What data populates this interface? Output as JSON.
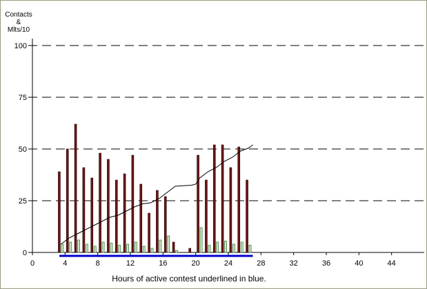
{
  "chart_data": {
    "type": "bar",
    "ylabel_lines": [
      "Contacts",
      "&",
      "Mlts/10"
    ],
    "xlabel": "Hours of active contest underlined in blue.",
    "xlim": [
      0,
      48
    ],
    "ylim": [
      0,
      100
    ],
    "x_ticks": [
      0,
      4,
      8,
      12,
      16,
      20,
      24,
      28,
      32,
      36,
      40,
      44
    ],
    "y_ticks": [
      0,
      25,
      50,
      75,
      100
    ],
    "grid": "horizontal dashed",
    "series": [
      {
        "kind": "bar",
        "color": "#6b1616",
        "points": [
          {
            "x": 3.5,
            "y": 39
          },
          {
            "x": 4.5,
            "y": 50
          },
          {
            "x": 5.5,
            "y": 62
          },
          {
            "x": 6.5,
            "y": 41
          },
          {
            "x": 7.5,
            "y": 36
          },
          {
            "x": 8.5,
            "y": 48
          },
          {
            "x": 9.5,
            "y": 45
          },
          {
            "x": 10.5,
            "y": 35
          },
          {
            "x": 11.5,
            "y": 38
          },
          {
            "x": 12.5,
            "y": 47
          },
          {
            "x": 13.5,
            "y": 33
          },
          {
            "x": 14.5,
            "y": 19
          },
          {
            "x": 15.5,
            "y": 30
          },
          {
            "x": 16.5,
            "y": 27
          },
          {
            "x": 17.5,
            "y": 5
          },
          {
            "x": 19.5,
            "y": 2
          },
          {
            "x": 20.5,
            "y": 47
          },
          {
            "x": 21.5,
            "y": 35
          },
          {
            "x": 22.5,
            "y": 52
          },
          {
            "x": 23.5,
            "y": 52
          },
          {
            "x": 24.5,
            "y": 41
          },
          {
            "x": 25.5,
            "y": 51
          },
          {
            "x": 26.5,
            "y": 35
          }
        ]
      },
      {
        "kind": "bar",
        "color": "#3f7a3f",
        "fill": "#cfe8c4",
        "points": [
          {
            "x": 3.5,
            "y": 4
          },
          {
            "x": 4.5,
            "y": 5
          },
          {
            "x": 5.5,
            "y": 6
          },
          {
            "x": 6.5,
            "y": 4
          },
          {
            "x": 7.5,
            "y": 3
          },
          {
            "x": 8.5,
            "y": 5
          },
          {
            "x": 9.5,
            "y": 4.5
          },
          {
            "x": 10.5,
            "y": 3.5
          },
          {
            "x": 11.5,
            "y": 4
          },
          {
            "x": 12.5,
            "y": 5
          },
          {
            "x": 13.5,
            "y": 3
          },
          {
            "x": 14.5,
            "y": 2
          },
          {
            "x": 15.5,
            "y": 6
          },
          {
            "x": 16.5,
            "y": 8
          },
          {
            "x": 17.5,
            "y": 1
          },
          {
            "x": 20.5,
            "y": 12
          },
          {
            "x": 21.5,
            "y": 3.5
          },
          {
            "x": 22.5,
            "y": 5
          },
          {
            "x": 23.5,
            "y": 5.5
          },
          {
            "x": 24.5,
            "y": 4
          },
          {
            "x": 25.5,
            "y": 5
          },
          {
            "x": 26.5,
            "y": 3.5
          }
        ]
      },
      {
        "kind": "line",
        "color": "#000000",
        "points": [
          {
            "x": 3.5,
            "y": 4
          },
          {
            "x": 4.5,
            "y": 7
          },
          {
            "x": 5.5,
            "y": 9
          },
          {
            "x": 6.5,
            "y": 11
          },
          {
            "x": 7.5,
            "y": 13
          },
          {
            "x": 8.5,
            "y": 15
          },
          {
            "x": 9.5,
            "y": 17
          },
          {
            "x": 10.5,
            "y": 18
          },
          {
            "x": 11.5,
            "y": 20
          },
          {
            "x": 12.5,
            "y": 22
          },
          {
            "x": 13.5,
            "y": 23.5
          },
          {
            "x": 14.5,
            "y": 24
          },
          {
            "x": 15.5,
            "y": 26
          },
          {
            "x": 16.5,
            "y": 29
          },
          {
            "x": 17.5,
            "y": 32
          },
          {
            "x": 19.5,
            "y": 32.5
          },
          {
            "x": 20,
            "y": 33
          },
          {
            "x": 20.5,
            "y": 36
          },
          {
            "x": 21.5,
            "y": 39
          },
          {
            "x": 22.5,
            "y": 41
          },
          {
            "x": 23.5,
            "y": 44
          },
          {
            "x": 24.5,
            "y": 46
          },
          {
            "x": 25.5,
            "y": 49
          },
          {
            "x": 26.5,
            "y": 50.5
          },
          {
            "x": 27,
            "y": 52
          }
        ]
      }
    ],
    "active_period": {
      "x_start": 3.3,
      "x_end": 27,
      "color": "#0000cc"
    }
  }
}
